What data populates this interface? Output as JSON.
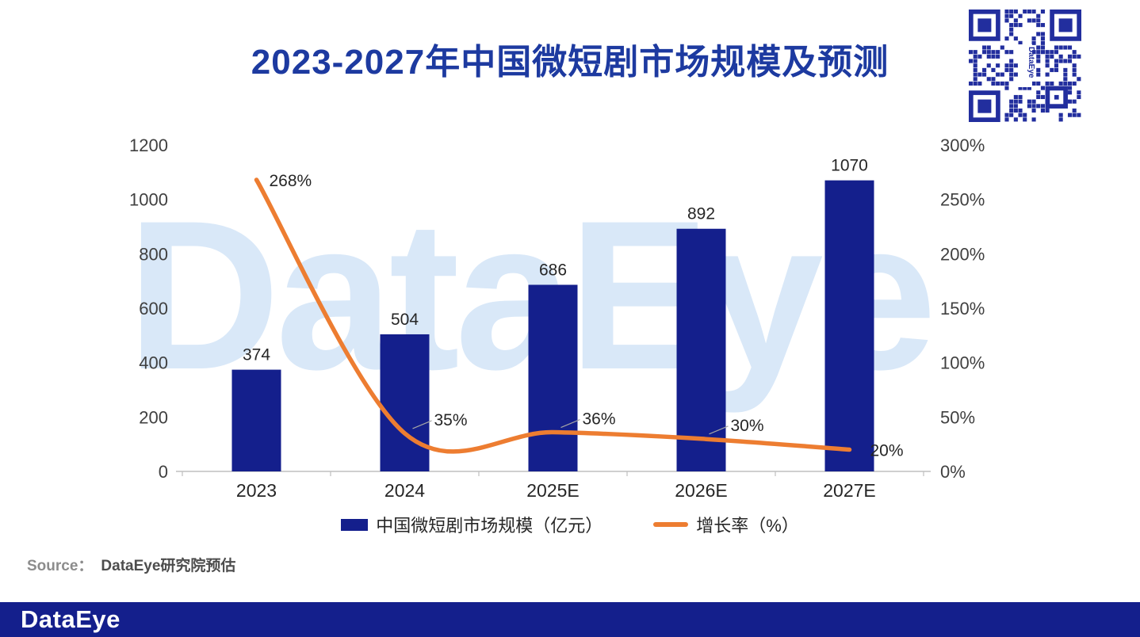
{
  "header": {
    "title": "2023-2027年中国微短剧市场规模及预测"
  },
  "watermark": "DataEye",
  "qr": {
    "label": "DataEye"
  },
  "chart_data": {
    "type": "bar+line combo",
    "title": "2023-2027年中国微短剧市场规模及预测",
    "categories": [
      "2023",
      "2024",
      "2025E",
      "2026E",
      "2027E"
    ],
    "series": [
      {
        "name": "中国微短剧市场规模（亿元）",
        "type": "bar",
        "axis": "left",
        "color": "#141f8c",
        "values": [
          374,
          504,
          686,
          892,
          1070
        ]
      },
      {
        "name": "增长率（%）",
        "type": "line",
        "axis": "right",
        "color": "#ed7d31",
        "unit": "%",
        "values": [
          268,
          35,
          36,
          30,
          20
        ]
      }
    ],
    "left_axis": {
      "min": 0,
      "max": 1200,
      "step": 200,
      "ticks": [
        "0",
        "200",
        "400",
        "600",
        "800",
        "1000",
        "1200"
      ]
    },
    "right_axis": {
      "min": 0,
      "max": 300,
      "step": 50,
      "ticks": [
        "0%",
        "50%",
        "100%",
        "150%",
        "200%",
        "250%",
        "300%"
      ]
    },
    "grid": false,
    "legend_position": "bottom",
    "bar_labels": [
      "374",
      "504",
      "686",
      "892",
      "1070"
    ],
    "line_labels": [
      "268%",
      "35%",
      "36%",
      "30%",
      "20%"
    ]
  },
  "legend": [
    {
      "label": "中国微短剧市场规模（亿元）",
      "swatch": "bar"
    },
    {
      "label": "增长率（%）",
      "swatch": "line"
    }
  ],
  "source": {
    "prefix": "Source：",
    "text": "DataEye研究院预估"
  },
  "footer": {
    "logo": "DataEye"
  },
  "colors": {
    "bar": "#141f8c",
    "line": "#ed7d31",
    "title": "#1d3aa0",
    "watermark": "#d9e8f8",
    "footer_bg": "#141f8c",
    "qr": "#222e9e",
    "axis_text": "#404040",
    "axis_line": "#bfbfbf",
    "label_text": "#262626"
  }
}
